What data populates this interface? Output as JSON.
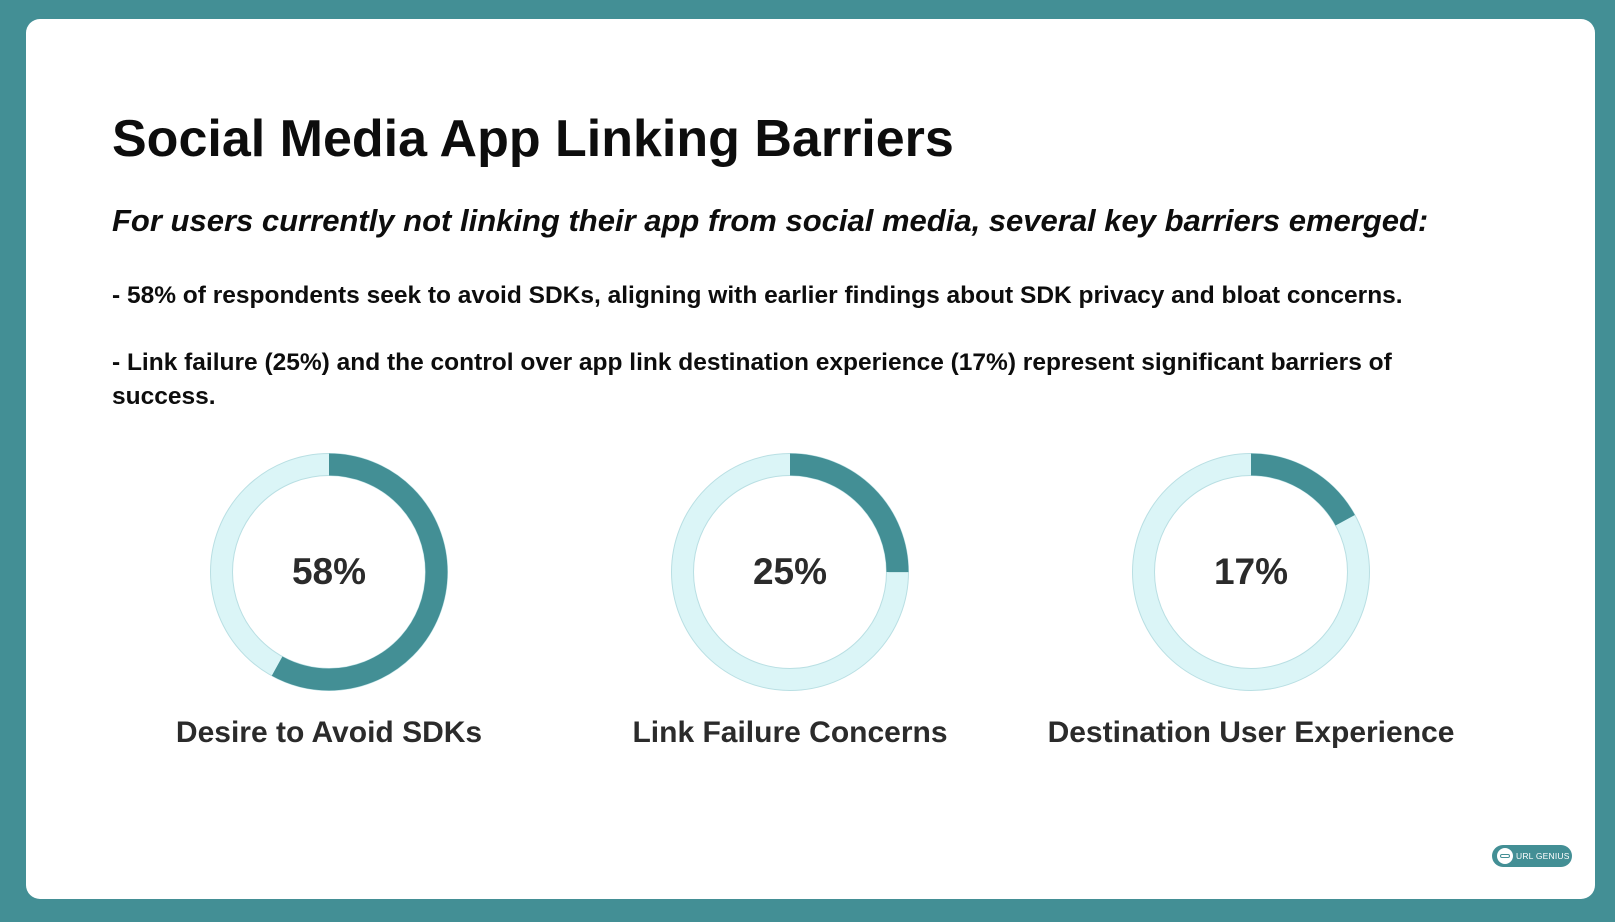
{
  "title": "Social Media App Linking Barriers",
  "subtitle": "For users currently not linking their app from social media, several key barriers emerged:",
  "bullets": [
    "- 58% of respondents seek to avoid SDKs, aligning with earlier findings about SDK privacy and bloat concerns.",
    "- Link failure (25%) and the control over app link destination experience (17%) represent significant barriers of success."
  ],
  "logo": {
    "text": "URL GENIUS",
    "icon": "link-icon"
  },
  "colors": {
    "background": "#438f95",
    "card": "#ffffff",
    "ring_fill": "#438f95",
    "ring_track": "#dbf5f7",
    "ring_track_border": "#b9dfe3",
    "text": "#0d0d0d",
    "value_text": "#2b2b2b"
  },
  "chart_data": {
    "type": "pie",
    "variant": "donut",
    "categories": [
      "Desire to Avoid SDKs",
      "Link Failure Concerns",
      "Destination User Experience"
    ],
    "values": [
      58,
      25,
      17
    ],
    "value_labels": [
      "58%",
      "25%",
      "17%"
    ],
    "max": 100
  }
}
